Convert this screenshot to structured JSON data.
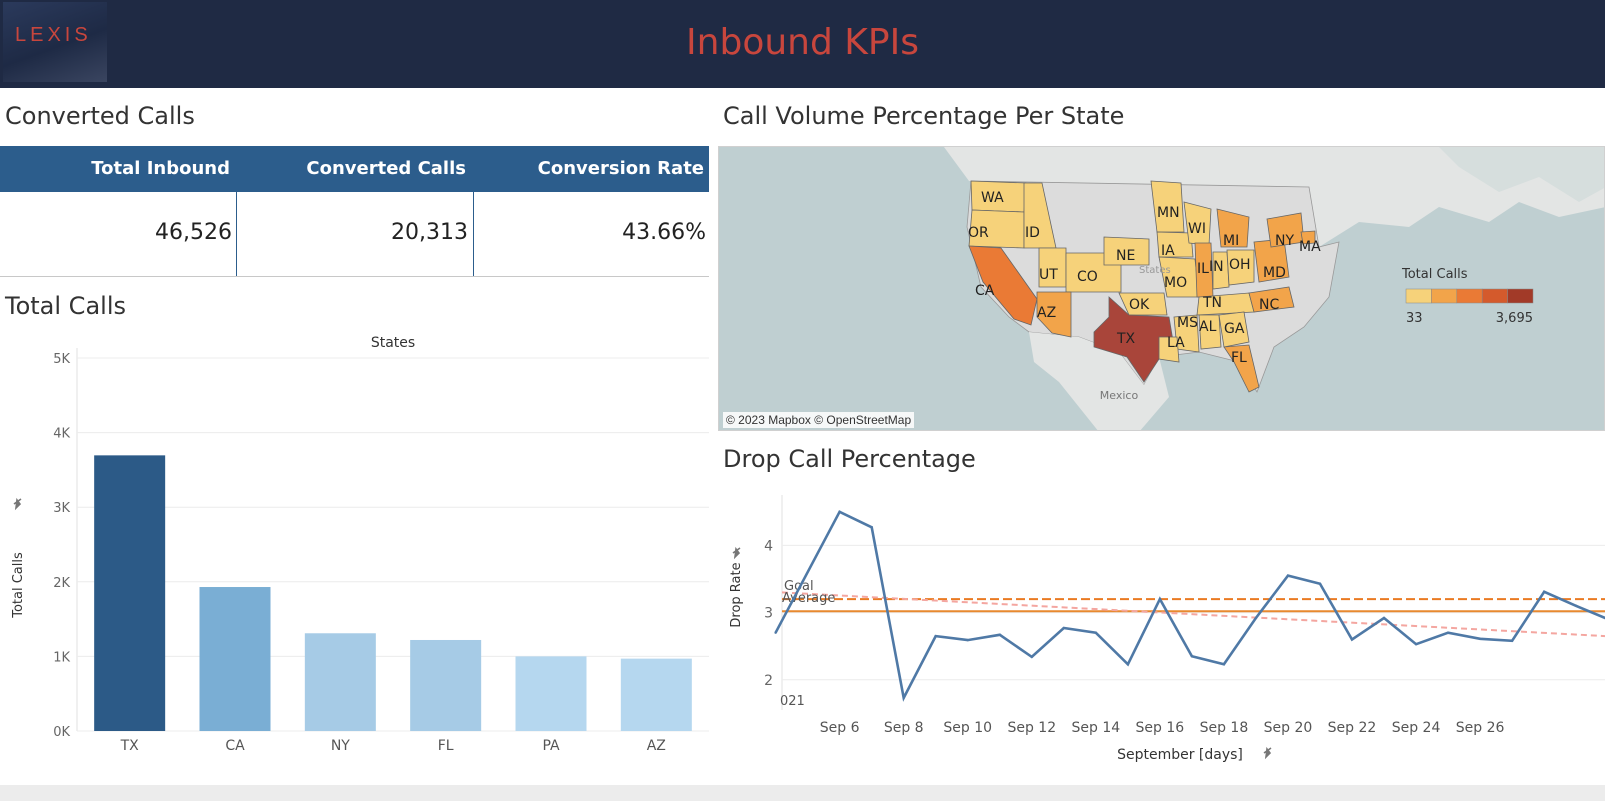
{
  "header": {
    "logo_text": "LEXIS",
    "title": "Inbound KPIs"
  },
  "converted": {
    "title": "Converted Calls",
    "columns": [
      "Total Inbound",
      "Converted Calls",
      "Conversion Rate"
    ],
    "values": [
      "46,526",
      "20,313",
      "43.66%"
    ]
  },
  "total_calls_title": "Total Calls",
  "map": {
    "title": "Call Volume Percentage Per State",
    "credit": "© 2023 Mapbox © OpenStreetMap",
    "legend_title": "Total Calls",
    "legend_min": "33",
    "legend_max": "3,695",
    "legend_colors": [
      "#f6d27a",
      "#f2a44a",
      "#ea7a35",
      "#d45a2c",
      "#a23a28"
    ],
    "country_label": "Mexico",
    "states_faint_label": "States",
    "state_labels": [
      "WA",
      "OR",
      "ID",
      "MN",
      "WI",
      "MI",
      "NY",
      "MA",
      "IA",
      "NE",
      "UT",
      "CO",
      "CA",
      "IL",
      "IN",
      "OH",
      "MD",
      "MO",
      "AZ",
      "OK",
      "TN",
      "NC",
      "TX",
      "MS",
      "AL",
      "GA",
      "LA",
      "FL"
    ]
  },
  "drop": {
    "title": "Drop Call Percentage",
    "goal_label": "Goal",
    "average_label": "Average",
    "year_fragment": "021"
  },
  "chart_data": [
    {
      "type": "bar",
      "title": "States",
      "ylabel": "Total Calls",
      "xlabel": "",
      "ylim": [
        0,
        5000
      ],
      "yticks": [
        "0K",
        "1K",
        "2K",
        "3K",
        "4K",
        "5K"
      ],
      "categories": [
        "TX",
        "CA",
        "NY",
        "FL",
        "PA",
        "AZ"
      ],
      "values": [
        3695,
        1930,
        1310,
        1220,
        1000,
        970
      ],
      "colors": [
        "#2c5a87",
        "#7aaed4",
        "#a6cbe6",
        "#a6cbe6",
        "#b5d7ef",
        "#b5d7ef"
      ]
    },
    {
      "type": "line",
      "title": "Drop Call Percentage",
      "xlabel": "September [days]",
      "ylabel": "Drop Rate",
      "ylim": [
        1.55,
        4.75
      ],
      "xlim": [
        4.2,
        29.9
      ],
      "yticks": [
        2,
        3,
        4
      ],
      "xticks": [
        6,
        8,
        10,
        12,
        14,
        16,
        18,
        20,
        22,
        24,
        26
      ],
      "xtick_labels": [
        "Sep 6",
        "Sep 8",
        "Sep 10",
        "Sep 12",
        "Sep 14",
        "Sep 16",
        "Sep 18",
        "Sep 20",
        "Sep 22",
        "Sep 24",
        "Sep 26"
      ],
      "x": [
        4,
        6,
        7,
        8,
        9,
        10,
        11,
        12,
        13,
        14,
        15,
        16,
        17,
        18,
        19,
        20,
        21,
        22,
        23,
        24,
        25,
        26,
        27,
        28,
        29,
        30
      ],
      "values": [
        2.7,
        4.5,
        4.27,
        1.73,
        2.65,
        2.59,
        2.67,
        2.34,
        2.77,
        2.7,
        2.23,
        3.2,
        2.35,
        2.23,
        2.92,
        3.55,
        3.43,
        2.6,
        2.92,
        2.53,
        2.7,
        2.61,
        2.58,
        3.31,
        3.1,
        2.9
      ],
      "goal": 3.2,
      "average": 3.02,
      "trend": [
        3.3,
        2.65
      ]
    }
  ]
}
